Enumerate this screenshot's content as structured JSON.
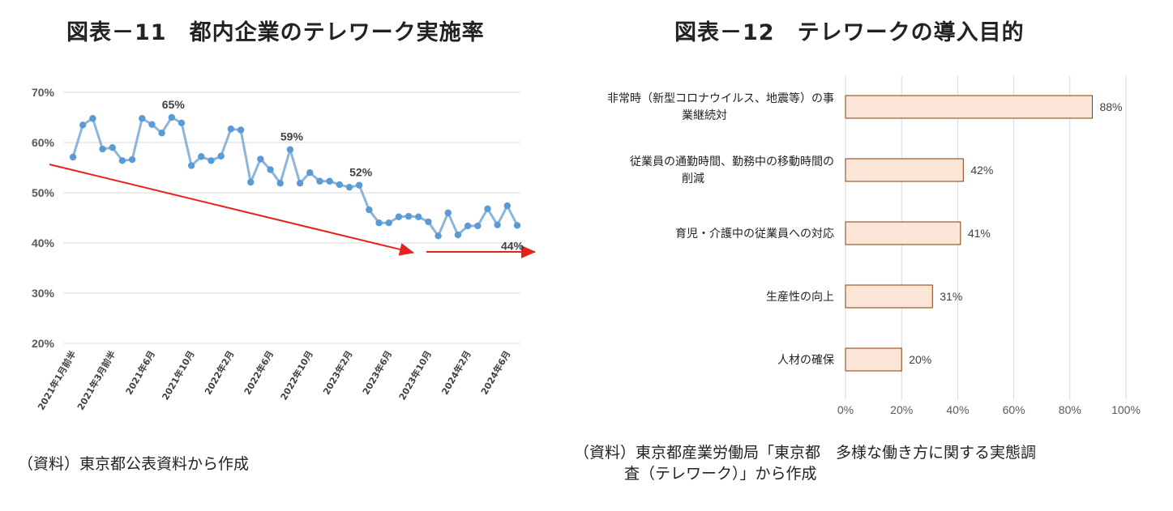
{
  "left": {
    "title": "図表－11　都内企業のテレワーク実施率",
    "source": "（資料）東京都公表資料から作成"
  },
  "right": {
    "title": "図表－12　テレワークの導入目的",
    "source_line1": "（資料）東京都産業労働局「東京都　多様な働き方に関する実態調",
    "source_line2": "査（テレワーク）」から作成"
  },
  "chart_data": [
    {
      "type": "line",
      "title": "図表－11　都内企業のテレワーク実施率",
      "ylim": [
        20,
        70
      ],
      "ytick_labels": [
        "70%",
        "60%",
        "50%",
        "40%",
        "30%",
        "20%"
      ],
      "xtick_labels": [
        "2021年1月前半",
        "2021年3月前半",
        "2021年6月",
        "2021年10月",
        "2022年2月",
        "2022年6月",
        "2022年10月",
        "2023年2月",
        "2023年6月",
        "2023年10月",
        "2024年2月",
        "2024年6月"
      ],
      "grid": true,
      "series": [
        {
          "color": "#8db4d9",
          "marker_color": "#5b9bd5",
          "values": [
            57.1,
            63.5,
            64.8,
            58.7,
            59.0,
            56.4,
            56.6,
            64.8,
            63.6,
            61.9,
            65.0,
            63.9,
            55.4,
            57.2,
            56.4,
            57.3,
            62.7,
            62.5,
            52.1,
            56.7,
            54.6,
            51.9,
            58.6,
            51.9,
            54.0,
            52.3,
            52.3,
            51.6,
            51.1,
            51.5,
            46.6,
            44.0,
            44.0,
            45.2,
            45.3,
            45.2,
            44.2,
            41.4,
            46.0,
            41.6,
            43.4,
            43.4,
            46.8,
            43.6,
            47.4,
            43.5
          ]
        }
      ],
      "annotations": [
        {
          "text": "65%",
          "index": 10
        },
        {
          "text": "59%",
          "index": 22
        },
        {
          "text": "52%",
          "index": 29
        },
        {
          "text": "44%",
          "index": 45
        }
      ],
      "trend_arrows_color": "#e8201e"
    },
    {
      "type": "bar",
      "orientation": "horizontal",
      "title": "図表－12　テレワークの導入目的",
      "categories": [
        [
          "非常時（新型コロナウイルス、地震等）の事",
          "業継続対"
        ],
        [
          "従業員の通勤時間、勤務中の移動時間の",
          "削減"
        ],
        [
          "育児・介護中の従業員への対応"
        ],
        [
          "生産性の向上"
        ],
        [
          "人材の確保"
        ]
      ],
      "values": [
        88,
        42,
        41,
        31,
        20
      ],
      "value_labels": [
        "88%",
        "42%",
        "41%",
        "31%",
        "20%"
      ],
      "xlim": [
        0,
        100
      ],
      "xtick_labels": [
        "0%",
        "20%",
        "40%",
        "60%",
        "80%",
        "100%"
      ],
      "bar_fill": "#fbe5d6",
      "bar_stroke": "#843c0c",
      "grid": true
    }
  ]
}
